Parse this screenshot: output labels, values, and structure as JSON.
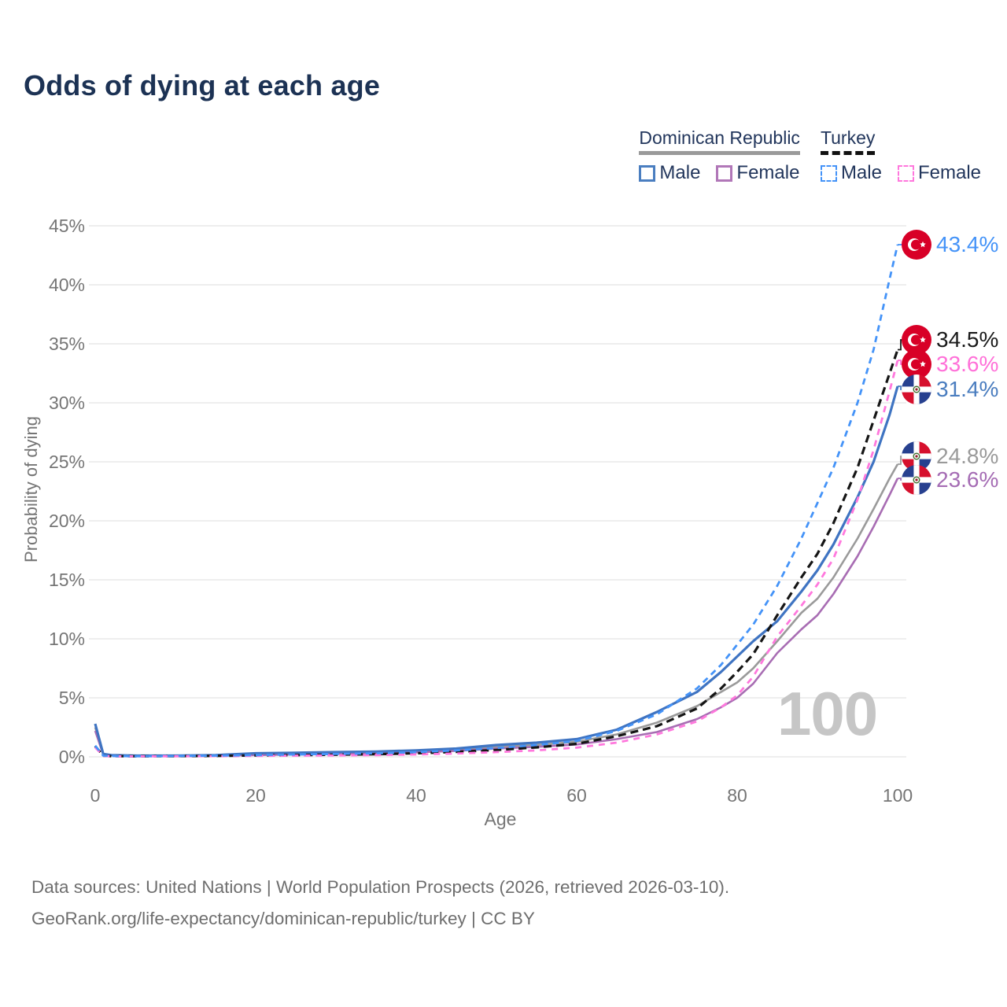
{
  "header": {
    "title": "Odds of dying at each age"
  },
  "legend": {
    "groups": [
      {
        "title": "Dominican Republic",
        "underline_style": "solid",
        "underline_color": "#9a9a9a",
        "items": [
          {
            "label": "Male",
            "swatch_color": "#4a7ec0",
            "swatch_style": "solid"
          },
          {
            "label": "Female",
            "swatch_color": "#b177b8",
            "swatch_style": "solid"
          }
        ]
      },
      {
        "title": "Turkey",
        "underline_style": "dashed",
        "underline_color": "#111111",
        "items": [
          {
            "label": "Male",
            "swatch_color": "#4493f8",
            "swatch_style": "dashed"
          },
          {
            "label": "Female",
            "swatch_color": "#ff78dd",
            "swatch_style": "dashed"
          }
        ]
      }
    ]
  },
  "watermark": {
    "hover_age": "100"
  },
  "chart_data": {
    "type": "line",
    "title": "Odds of dying at each age",
    "xlabel": "Age",
    "ylabel": "Probability of dying",
    "xlim": [
      0,
      100
    ],
    "ylim_percent": [
      0,
      45
    ],
    "x_ticks": [
      0,
      20,
      40,
      60,
      80,
      100
    ],
    "y_ticks_percent": [
      0,
      5,
      10,
      15,
      20,
      25,
      30,
      35,
      40,
      45
    ],
    "grid": true,
    "legend_position": "top-right",
    "ages": [
      0,
      1,
      2,
      5,
      10,
      15,
      20,
      25,
      30,
      35,
      40,
      45,
      50,
      55,
      60,
      65,
      70,
      75,
      78,
      80,
      82,
      85,
      88,
      90,
      92,
      95,
      97,
      99,
      100
    ],
    "series": [
      {
        "name": "Dominican Republic",
        "sex": "combined",
        "color": "#9a9a9a",
        "style": "solid",
        "width": 2.6,
        "values_percent": [
          2.5,
          0.22,
          0.13,
          0.09,
          0.09,
          0.12,
          0.22,
          0.28,
          0.33,
          0.38,
          0.46,
          0.6,
          0.85,
          1.0,
          1.28,
          1.9,
          2.9,
          4.3,
          5.5,
          6.3,
          7.5,
          9.8,
          12.2,
          13.4,
          15.2,
          18.5,
          21.0,
          23.6,
          24.8
        ]
      },
      {
        "name": "Dominican Republic Female",
        "sex": "female",
        "color": "#a86db3",
        "style": "solid",
        "width": 2.6,
        "values_percent": [
          2.2,
          0.2,
          0.12,
          0.08,
          0.08,
          0.1,
          0.15,
          0.2,
          0.25,
          0.3,
          0.38,
          0.5,
          0.7,
          0.85,
          1.05,
          1.5,
          2.1,
          3.2,
          4.2,
          5.0,
          6.2,
          8.8,
          10.8,
          12.0,
          13.8,
          17.0,
          19.5,
          22.2,
          23.6
        ]
      },
      {
        "name": "Dominican Republic Male",
        "sex": "male",
        "color": "#3f74c2",
        "style": "solid",
        "width": 3.2,
        "values_percent": [
          2.8,
          0.25,
          0.15,
          0.1,
          0.1,
          0.15,
          0.3,
          0.35,
          0.4,
          0.45,
          0.55,
          0.7,
          1.0,
          1.2,
          1.5,
          2.3,
          3.8,
          5.5,
          7.2,
          8.5,
          9.8,
          11.5,
          14.0,
          15.8,
          18.0,
          22.0,
          25.0,
          29.0,
          31.4
        ]
      },
      {
        "name": "Turkey",
        "sex": "combined",
        "color": "#151515",
        "style": "dashed",
        "dash": "10 6",
        "width": 3.2,
        "values_percent": [
          0.9,
          0.09,
          0.06,
          0.05,
          0.06,
          0.08,
          0.12,
          0.15,
          0.18,
          0.22,
          0.3,
          0.42,
          0.58,
          0.8,
          1.1,
          1.75,
          2.6,
          4.1,
          5.8,
          7.2,
          8.7,
          12.0,
          15.2,
          17.2,
          19.8,
          24.5,
          28.5,
          32.5,
          34.5
        ]
      },
      {
        "name": "Turkey Female",
        "sex": "female",
        "color": "#ff78dd",
        "style": "dashed",
        "dash": "8 7",
        "width": 2.8,
        "values_percent": [
          0.8,
          0.08,
          0.05,
          0.04,
          0.05,
          0.06,
          0.08,
          0.1,
          0.12,
          0.15,
          0.2,
          0.28,
          0.4,
          0.55,
          0.78,
          1.2,
          1.9,
          3.0,
          4.2,
          5.2,
          6.8,
          10.2,
          12.8,
          14.6,
          16.8,
          21.8,
          26.0,
          31.0,
          33.6
        ]
      },
      {
        "name": "Turkey Male",
        "sex": "male",
        "color": "#4493f8",
        "style": "dashed",
        "dash": "8 6",
        "width": 2.8,
        "values_percent": [
          0.95,
          0.1,
          0.07,
          0.05,
          0.07,
          0.1,
          0.15,
          0.2,
          0.25,
          0.3,
          0.4,
          0.55,
          0.75,
          1.0,
          1.35,
          2.2,
          3.6,
          5.8,
          7.8,
          9.5,
          11.2,
          14.5,
          18.5,
          21.5,
          24.5,
          30.0,
          34.5,
          40.5,
          43.4
        ]
      }
    ],
    "end_labels": [
      {
        "series": "Turkey Male",
        "country": "Turkey",
        "text": "43.4%",
        "color": "#4493f8",
        "value_percent": 43.4
      },
      {
        "series": "Turkey",
        "country": "Turkey",
        "text": "34.5%",
        "color": "#1a1a1a",
        "value_percent": 34.5
      },
      {
        "series": "Turkey Female",
        "country": "Turkey",
        "text": "33.6%",
        "color": "#ff70d8",
        "value_percent": 33.6
      },
      {
        "series": "Dominican Republic Male",
        "country": "Dominican Republic",
        "text": "31.4%",
        "color": "#4a7dbf",
        "value_percent": 31.4
      },
      {
        "series": "Dominican Republic",
        "country": "Dominican Republic",
        "text": "24.8%",
        "color": "#9a9a9a",
        "value_percent": 24.8
      },
      {
        "series": "Dominican Republic Female",
        "country": "Dominican Republic",
        "text": "23.6%",
        "color": "#a56cb4",
        "value_percent": 23.6
      }
    ]
  },
  "footer": {
    "line1": "Data sources: United Nations | World Population Prospects (2026, retrieved 2026-03-10).",
    "line2": "GeoRank.org/life-expectancy/dominican-republic/turkey | CC BY"
  }
}
